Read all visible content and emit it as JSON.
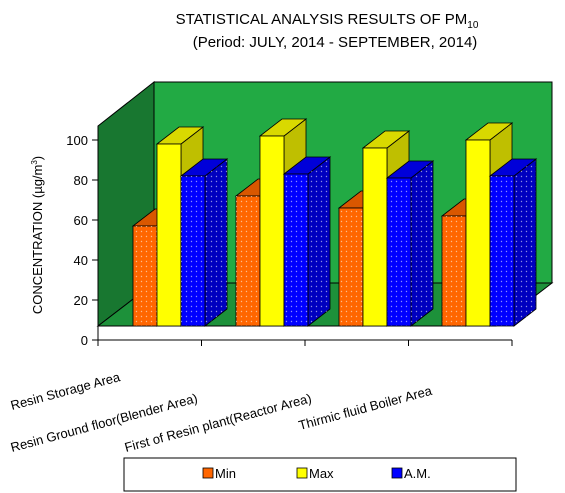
{
  "chart_data": {
    "type": "bar",
    "title": "STATISTICAL  ANALYSIS RESULTS  OF PM",
    "title_subscript": "10",
    "subtitle": "(Period: JULY, 2014  - SEPTEMBER, 2014)",
    "ylabel": "CONCENTRATION (µg/m",
    "ylabel_superscript": "3",
    "ylabel_suffix": ")",
    "ylim": [
      0,
      100
    ],
    "yticks": [
      "0",
      "20",
      "40",
      "60",
      "80",
      "100"
    ],
    "categories": [
      "Resin Storage Area",
      "Resin Ground floor(Blender Area)",
      "First of Resin plant(Reactor Area)",
      "Thirmic fluid Boiler Area"
    ],
    "series": [
      {
        "name": "Min",
        "color": "#ff6600",
        "values": [
          50,
          65,
          59,
          55
        ]
      },
      {
        "name": "Max",
        "color": "#ffff00",
        "values": [
          91,
          95,
          89,
          93
        ]
      },
      {
        "name": "A.M.",
        "color": "#0000ff",
        "values": [
          75,
          76,
          74,
          75
        ]
      }
    ],
    "legend_position": "bottom",
    "wall_color": "#22aa44",
    "grid": false
  }
}
